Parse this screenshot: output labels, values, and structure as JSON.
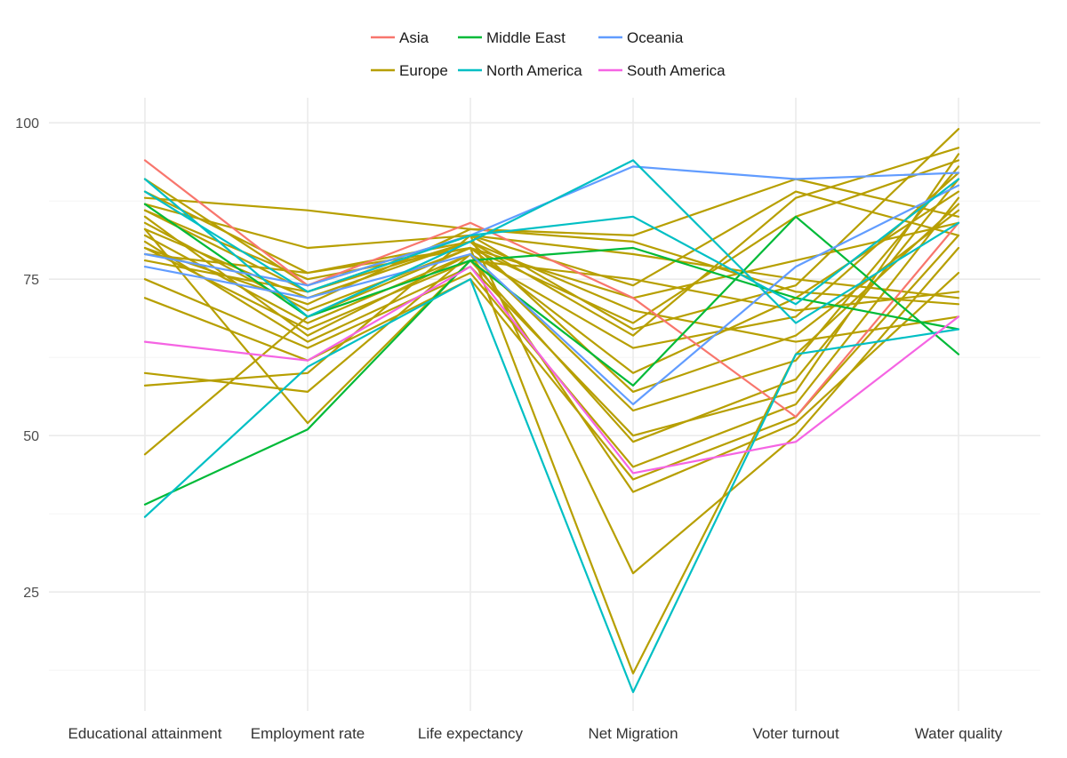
{
  "chart_data": {
    "type": "line",
    "chart_style": "parallel-coordinates",
    "title": "",
    "xlabel": "",
    "ylabel": "",
    "ylim": [
      6,
      104
    ],
    "y_ticks": [
      25,
      50,
      75,
      100
    ],
    "y_minor_ticks": [
      12.5,
      37.5,
      62.5,
      87.5
    ],
    "grid": true,
    "legend_position": "top",
    "categories": [
      "Educational attainment",
      "Employment rate",
      "Life expectancy",
      "Net Migration",
      "Voter turnout",
      "Water quality"
    ],
    "legend": [
      {
        "name": "Asia",
        "color": "#F8766D"
      },
      {
        "name": "Middle East",
        "color": "#00BA38"
      },
      {
        "name": "Oceania",
        "color": "#619CFF"
      },
      {
        "name": "Europe",
        "color": "#B79F00"
      },
      {
        "name": "North America",
        "color": "#00BFC4"
      },
      {
        "name": "South America",
        "color": "#F564E3"
      }
    ],
    "series": [
      {
        "name": "Europe",
        "values": [
          91,
          74,
          82,
          79,
          75,
          72
        ]
      },
      {
        "name": "Europe",
        "values": [
          89,
          76,
          81,
          66,
          88,
          96
        ]
      },
      {
        "name": "Europe",
        "values": [
          88,
          86,
          83,
          82,
          91,
          85
        ]
      },
      {
        "name": "Europe",
        "values": [
          87,
          80,
          82,
          74,
          89,
          82
        ]
      },
      {
        "name": "Europe",
        "values": [
          86,
          75,
          80,
          68,
          85,
          94
        ]
      },
      {
        "name": "Europe",
        "values": [
          85,
          66,
          79,
          64,
          69,
          92
        ]
      },
      {
        "name": "Europe",
        "values": [
          84,
          70,
          80,
          60,
          72,
          89
        ]
      },
      {
        "name": "Europe",
        "values": [
          83,
          72,
          81,
          57,
          66,
          86
        ]
      },
      {
        "name": "Europe",
        "values": [
          82,
          68,
          79,
          54,
          62,
          93
        ]
      },
      {
        "name": "Europe",
        "values": [
          81,
          65,
          77,
          50,
          57,
          95
        ]
      },
      {
        "name": "Europe",
        "values": [
          80,
          67,
          78,
          49,
          59,
          91
        ]
      },
      {
        "name": "Europe",
        "values": [
          79,
          76,
          80,
          72,
          78,
          84
        ]
      },
      {
        "name": "Europe",
        "values": [
          78,
          73,
          82,
          67,
          74,
          99
        ]
      },
      {
        "name": "Europe",
        "values": [
          75,
          64,
          76,
          45,
          55,
          88
        ]
      },
      {
        "name": "Europe",
        "values": [
          72,
          62,
          75,
          43,
          53,
          82
        ]
      },
      {
        "name": "Europe",
        "values": [
          60,
          57,
          79,
          41,
          52,
          76
        ]
      },
      {
        "name": "Europe",
        "values": [
          58,
          60,
          82,
          28,
          50,
          80
        ]
      },
      {
        "name": "Europe",
        "values": [
          47,
          69,
          80,
          12,
          63,
          87
        ]
      },
      {
        "name": "Europe",
        "values": [
          83,
          52,
          78,
          75,
          70,
          73
        ]
      },
      {
        "name": "Europe",
        "values": [
          80,
          71,
          83,
          81,
          73,
          71
        ]
      },
      {
        "name": "Europe",
        "values": [
          86,
          73,
          81,
          70,
          65,
          69
        ]
      },
      {
        "name": "Asia",
        "values": [
          94,
          74,
          84,
          72,
          53,
          84
        ]
      },
      {
        "name": "Middle East",
        "values": [
          87,
          69,
          78,
          58,
          85,
          63
        ]
      },
      {
        "name": "Middle East",
        "values": [
          39,
          51,
          78,
          80,
          72,
          67
        ]
      },
      {
        "name": "Oceania",
        "values": [
          79,
          74,
          82,
          93,
          91,
          92
        ]
      },
      {
        "name": "Oceania",
        "values": [
          77,
          72,
          79,
          55,
          77,
          90
        ]
      },
      {
        "name": "North America",
        "values": [
          91,
          69,
          81,
          94,
          68,
          84
        ]
      },
      {
        "name": "North America",
        "values": [
          37,
          61,
          75,
          9,
          63,
          67
        ]
      },
      {
        "name": "North America",
        "values": [
          89,
          73,
          82,
          85,
          71,
          91
        ]
      },
      {
        "name": "South America",
        "values": [
          65,
          62,
          77,
          44,
          49,
          69
        ]
      }
    ]
  }
}
